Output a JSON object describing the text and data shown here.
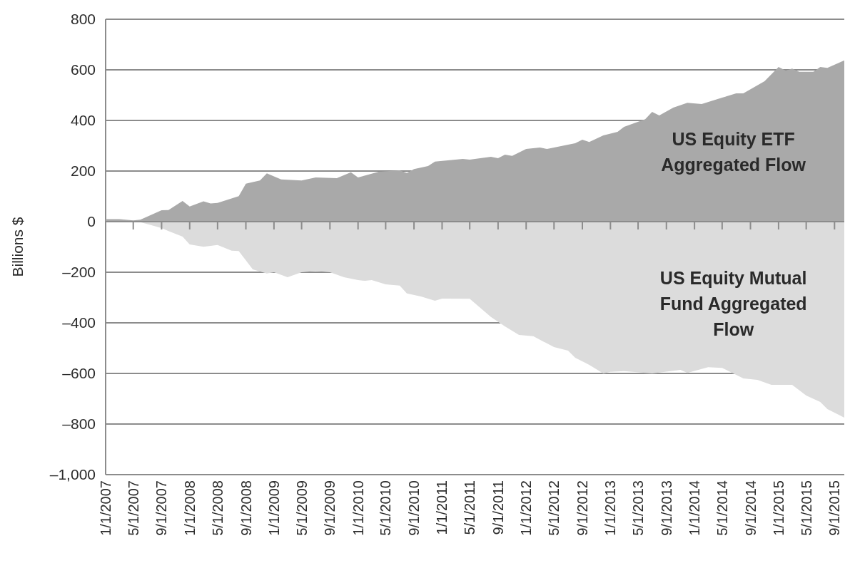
{
  "chart_data": {
    "type": "area",
    "ylabel": "Billions $",
    "grid": "y",
    "xlim": [
      "2007-01",
      "2015-11"
    ],
    "xticks": [
      {
        "value": "2007-01",
        "label": "1/1/2007"
      },
      {
        "value": "2007-05",
        "label": "5/1/2007"
      },
      {
        "value": "2007-09",
        "label": "9/1/2007"
      },
      {
        "value": "2008-01",
        "label": "1/1/2008"
      },
      {
        "value": "2008-05",
        "label": "5/1/2008"
      },
      {
        "value": "2008-09",
        "label": "9/1/2008"
      },
      {
        "value": "2009-01",
        "label": "1/1/2009"
      },
      {
        "value": "2009-05",
        "label": "5/1/2009"
      },
      {
        "value": "2009-09",
        "label": "9/1/2009"
      },
      {
        "value": "2010-01",
        "label": "1/1/2010"
      },
      {
        "value": "2010-05",
        "label": "5/1/2010"
      },
      {
        "value": "2010-09",
        "label": "9/1/2010"
      },
      {
        "value": "2011-01",
        "label": "1/1/2011"
      },
      {
        "value": "2011-05",
        "label": "5/1/2011"
      },
      {
        "value": "2011-09",
        "label": "9/1/2011"
      },
      {
        "value": "2012-01",
        "label": "1/1/2012"
      },
      {
        "value": "2012-05",
        "label": "5/1/2012"
      },
      {
        "value": "2012-09",
        "label": "9/1/2012"
      },
      {
        "value": "2013-01",
        "label": "1/1/2013"
      },
      {
        "value": "2013-05",
        "label": "5/1/2013"
      },
      {
        "value": "2013-09",
        "label": "9/1/2013"
      },
      {
        "value": "2014-01",
        "label": "1/1/2014"
      },
      {
        "value": "2014-05",
        "label": "5/1/2014"
      },
      {
        "value": "2014-09",
        "label": "9/1/2014"
      },
      {
        "value": "2015-01",
        "label": "1/1/2015"
      },
      {
        "value": "2015-05",
        "label": "5/1/2015"
      },
      {
        "value": "2015-09",
        "label": "9/1/2015"
      }
    ],
    "ylim": [
      -1000,
      800
    ],
    "yticks": [
      800,
      600,
      400,
      200,
      0,
      {
        "value": -200,
        "label": "–200"
      },
      {
        "value": -400,
        "label": "–400"
      },
      {
        "value": -600,
        "label": "–600"
      },
      {
        "value": -800,
        "label": "–800"
      },
      {
        "value": -1000,
        "label": "–1,000"
      }
    ],
    "series": [
      {
        "name": "US Equity ETF Aggregated Flow",
        "color": "#a9a9a9",
        "x": [
          "2007-01",
          "2007-03",
          "2007-05",
          "2007-06",
          "2007-09",
          "2007-10",
          "2007-12",
          "2008-01",
          "2008-03",
          "2008-04",
          "2008-05",
          "2008-08",
          "2008-09",
          "2008-11",
          "2008-12",
          "2009-02",
          "2009-05",
          "2009-07",
          "2009-10",
          "2009-12",
          "2010-01",
          "2010-04",
          "2010-07",
          "2010-08",
          "2010-09",
          "2010-11",
          "2010-12",
          "2011-04",
          "2011-05",
          "2011-08",
          "2011-09",
          "2011-10",
          "2011-11",
          "2012-01",
          "2012-03",
          "2012-04",
          "2012-07",
          "2012-08",
          "2012-09",
          "2012-10",
          "2012-12",
          "2013-02",
          "2013-03",
          "2013-06",
          "2013-07",
          "2013-08",
          "2013-10",
          "2013-12",
          "2014-02",
          "2014-05",
          "2014-07",
          "2014-08",
          "2014-11",
          "2015-01",
          "2015-02",
          "2015-03",
          "2015-04",
          "2015-06",
          "2015-07",
          "2015-08",
          "2015-11"
        ],
        "values": [
          10,
          10,
          5,
          8,
          45,
          46,
          82,
          60,
          80,
          72,
          74,
          101,
          150,
          163,
          191,
          167,
          163,
          175,
          172,
          195,
          175,
          197,
          203,
          192,
          208,
          220,
          237,
          248,
          245,
          256,
          251,
          265,
          260,
          287,
          293,
          287,
          304,
          310,
          324,
          315,
          341,
          355,
          375,
          405,
          434,
          420,
          451,
          470,
          465,
          490,
          507,
          507,
          555,
          611,
          597,
          605,
          592,
          592,
          611,
          608,
          645
        ]
      },
      {
        "name": "US Equity Mutual Fund Aggregated Flow",
        "color": "#dcdcdc",
        "x": [
          "2007-01",
          "2007-05",
          "2007-06",
          "2007-09",
          "2007-10",
          "2007-12",
          "2008-01",
          "2008-03",
          "2008-05",
          "2008-07",
          "2008-08",
          "2008-10",
          "2008-12",
          "2009-01",
          "2009-03",
          "2009-05",
          "2009-07",
          "2009-09",
          "2009-11",
          "2010-01",
          "2010-02",
          "2010-03",
          "2010-05",
          "2010-07",
          "2010-08",
          "2010-10",
          "2010-12",
          "2011-01",
          "2011-05",
          "2011-08",
          "2011-10",
          "2011-12",
          "2012-02",
          "2012-05",
          "2012-07",
          "2012-08",
          "2012-10",
          "2012-12",
          "2013-01",
          "2013-03",
          "2013-07",
          "2013-11",
          "2013-12",
          "2014-03",
          "2014-05",
          "2014-08",
          "2014-10",
          "2014-12",
          "2015-03",
          "2015-05",
          "2015-07",
          "2015-08",
          "2015-11"
        ],
        "values": [
          0,
          0,
          -2,
          -25,
          -37,
          -59,
          -90,
          -99,
          -92,
          -115,
          -116,
          -189,
          -205,
          -200,
          -220,
          -200,
          -195,
          -200,
          -220,
          -231,
          -234,
          -231,
          -248,
          -253,
          -284,
          -296,
          -313,
          -304,
          -305,
          -377,
          -414,
          -448,
          -453,
          -496,
          -510,
          -538,
          -566,
          -600,
          -594,
          -591,
          -600,
          -586,
          -598,
          -575,
          -578,
          -620,
          -625,
          -645,
          -645,
          -687,
          -713,
          -741,
          -783
        ]
      }
    ]
  }
}
